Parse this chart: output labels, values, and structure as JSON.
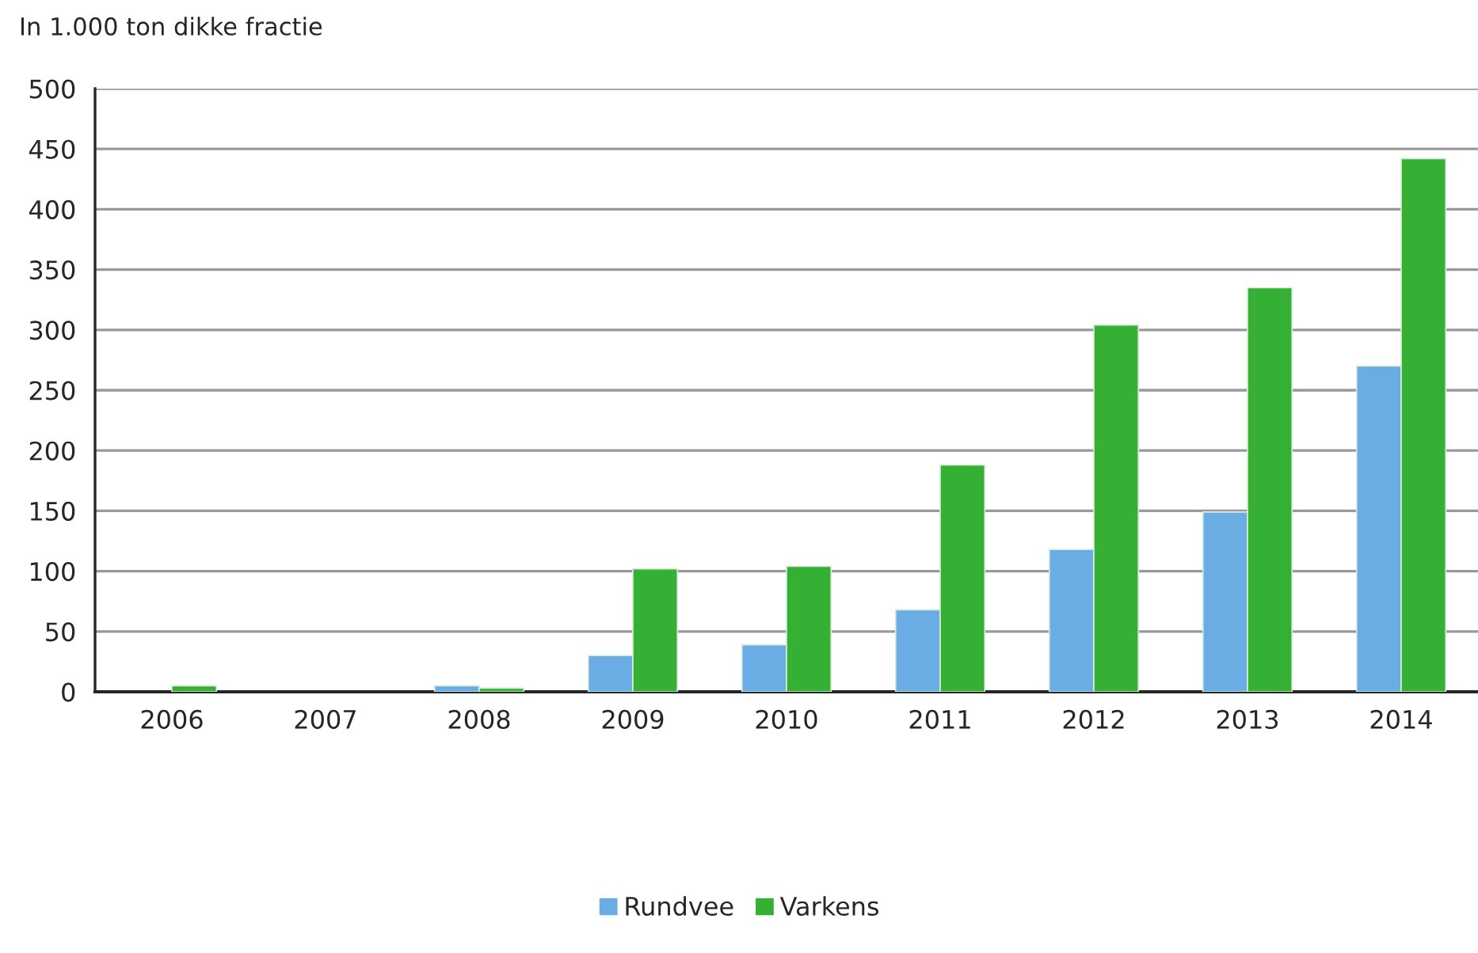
{
  "chart_data": {
    "type": "bar",
    "ylabel": "In 1.000 ton dikke fractie",
    "categories": [
      "2006",
      "2007",
      "2008",
      "2009",
      "2010",
      "2011",
      "2012",
      "2013",
      "2014"
    ],
    "series": [
      {
        "name": "Rundvee",
        "color": "#6aade4",
        "values": [
          null,
          null,
          5,
          30,
          39,
          68,
          118,
          149,
          270
        ]
      },
      {
        "name": "Varkens",
        "color": "#35b035",
        "values": [
          5,
          null,
          3,
          102,
          104,
          188,
          304,
          335,
          442
        ]
      }
    ],
    "ylim": [
      0,
      500
    ],
    "yticks": [
      0,
      50,
      100,
      150,
      200,
      250,
      300,
      350,
      400,
      450,
      500
    ],
    "grid": "y",
    "legend": "bottom"
  }
}
